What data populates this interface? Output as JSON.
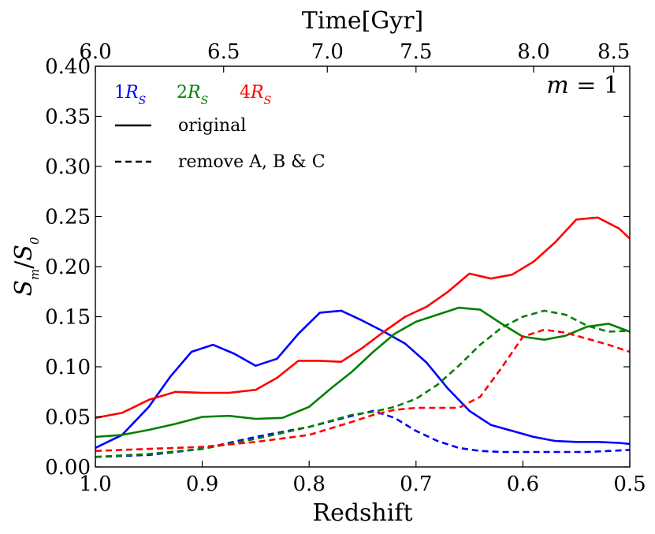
{
  "chart_data": {
    "type": "line",
    "title": "",
    "xlabel": "Redshift",
    "ylabel_main": "S",
    "ylabel_sub_num": "m",
    "ylabel_den": "S",
    "ylabel_sub_den": "0",
    "top_xlabel": "Time[Gyr]",
    "xlim": [
      1.0,
      0.5
    ],
    "ylim": [
      0.0,
      0.4
    ],
    "x_ticks": [
      1.0,
      0.9,
      0.8,
      0.7,
      0.6,
      0.5
    ],
    "x_tick_labels": [
      "1.0",
      "0.9",
      "0.8",
      "0.7",
      "0.6",
      "0.5"
    ],
    "y_ticks": [
      0.0,
      0.05,
      0.1,
      0.15,
      0.2,
      0.25,
      0.3,
      0.35,
      0.4
    ],
    "y_tick_labels": [
      "0.00",
      "0.05",
      "0.10",
      "0.15",
      "0.20",
      "0.25",
      "0.30",
      "0.35",
      "0.40"
    ],
    "top_ticks_redshift": [
      1.0,
      0.88,
      0.783,
      0.7,
      0.59,
      0.515
    ],
    "top_tick_labels": [
      "6.0",
      "6.5",
      "7.0",
      "7.5",
      "8.0",
      "8.5"
    ],
    "annotation": {
      "var": "m",
      "eq": " = 1"
    },
    "legend": {
      "radii": [
        {
          "num": "1",
          "var": "R",
          "sub": "S",
          "color": "#0000ff"
        },
        {
          "num": "2",
          "var": "R",
          "sub": "S",
          "color": "#008000"
        },
        {
          "num": "4",
          "var": "R",
          "sub": "S",
          "color": "#ff0000"
        }
      ],
      "styles": [
        {
          "label": "original",
          "dash": "solid"
        },
        {
          "label": "remove A, B & C",
          "dash": "dashed"
        }
      ]
    },
    "series": [
      {
        "name": "1R_S original",
        "color": "#0000ff",
        "dash": "solid",
        "x": [
          1.0,
          0.975,
          0.95,
          0.93,
          0.91,
          0.89,
          0.87,
          0.85,
          0.83,
          0.81,
          0.79,
          0.77,
          0.75,
          0.73,
          0.71,
          0.69,
          0.67,
          0.65,
          0.63,
          0.61,
          0.59,
          0.57,
          0.55,
          0.53,
          0.51,
          0.5
        ],
        "values": [
          0.019,
          0.032,
          0.06,
          0.09,
          0.115,
          0.122,
          0.113,
          0.101,
          0.108,
          0.133,
          0.154,
          0.156,
          0.146,
          0.135,
          0.123,
          0.104,
          0.078,
          0.056,
          0.042,
          0.036,
          0.03,
          0.026,
          0.025,
          0.025,
          0.024,
          0.023
        ]
      },
      {
        "name": "2R_S original",
        "color": "#008000",
        "dash": "solid",
        "x": [
          1.0,
          0.975,
          0.95,
          0.925,
          0.9,
          0.875,
          0.85,
          0.825,
          0.8,
          0.78,
          0.76,
          0.74,
          0.72,
          0.7,
          0.68,
          0.66,
          0.64,
          0.62,
          0.6,
          0.58,
          0.56,
          0.54,
          0.52,
          0.5
        ],
        "values": [
          0.03,
          0.032,
          0.037,
          0.043,
          0.05,
          0.051,
          0.048,
          0.049,
          0.06,
          0.078,
          0.095,
          0.115,
          0.133,
          0.145,
          0.152,
          0.159,
          0.157,
          0.143,
          0.13,
          0.127,
          0.131,
          0.14,
          0.143,
          0.135
        ]
      },
      {
        "name": "4R_S original",
        "color": "#ff0000",
        "dash": "solid",
        "x": [
          1.0,
          0.975,
          0.95,
          0.925,
          0.9,
          0.875,
          0.85,
          0.83,
          0.81,
          0.79,
          0.77,
          0.75,
          0.73,
          0.71,
          0.69,
          0.67,
          0.65,
          0.63,
          0.61,
          0.59,
          0.57,
          0.55,
          0.53,
          0.51,
          0.5
        ],
        "values": [
          0.049,
          0.054,
          0.067,
          0.075,
          0.074,
          0.074,
          0.077,
          0.089,
          0.106,
          0.106,
          0.105,
          0.119,
          0.135,
          0.15,
          0.16,
          0.175,
          0.193,
          0.188,
          0.192,
          0.205,
          0.224,
          0.247,
          0.249,
          0.238,
          0.228
        ]
      },
      {
        "name": "1R_S remove A, B & C",
        "color": "#0000ff",
        "dash": "dashed",
        "x": [
          1.0,
          0.95,
          0.9,
          0.85,
          0.8,
          0.76,
          0.74,
          0.72,
          0.7,
          0.68,
          0.66,
          0.64,
          0.62,
          0.6,
          0.58,
          0.56,
          0.54,
          0.52,
          0.5
        ],
        "values": [
          0.01,
          0.012,
          0.018,
          0.03,
          0.04,
          0.051,
          0.056,
          0.049,
          0.036,
          0.026,
          0.019,
          0.016,
          0.015,
          0.015,
          0.015,
          0.015,
          0.015,
          0.016,
          0.017
        ]
      },
      {
        "name": "2R_S remove A, B & C",
        "color": "#008000",
        "dash": "dashed",
        "x": [
          1.0,
          0.95,
          0.9,
          0.85,
          0.8,
          0.76,
          0.74,
          0.72,
          0.7,
          0.68,
          0.66,
          0.64,
          0.62,
          0.6,
          0.58,
          0.56,
          0.54,
          0.52,
          0.5
        ],
        "values": [
          0.01,
          0.013,
          0.018,
          0.028,
          0.04,
          0.052,
          0.055,
          0.06,
          0.068,
          0.082,
          0.101,
          0.122,
          0.139,
          0.15,
          0.156,
          0.152,
          0.141,
          0.135,
          0.136
        ]
      },
      {
        "name": "4R_S remove A, B & C",
        "color": "#ff0000",
        "dash": "dashed",
        "x": [
          1.0,
          0.95,
          0.9,
          0.85,
          0.8,
          0.76,
          0.74,
          0.72,
          0.7,
          0.68,
          0.66,
          0.64,
          0.62,
          0.6,
          0.58,
          0.56,
          0.54,
          0.52,
          0.5
        ],
        "values": [
          0.016,
          0.018,
          0.02,
          0.025,
          0.032,
          0.045,
          0.052,
          0.057,
          0.059,
          0.059,
          0.059,
          0.07,
          0.099,
          0.13,
          0.137,
          0.134,
          0.128,
          0.122,
          0.115
        ]
      }
    ]
  }
}
